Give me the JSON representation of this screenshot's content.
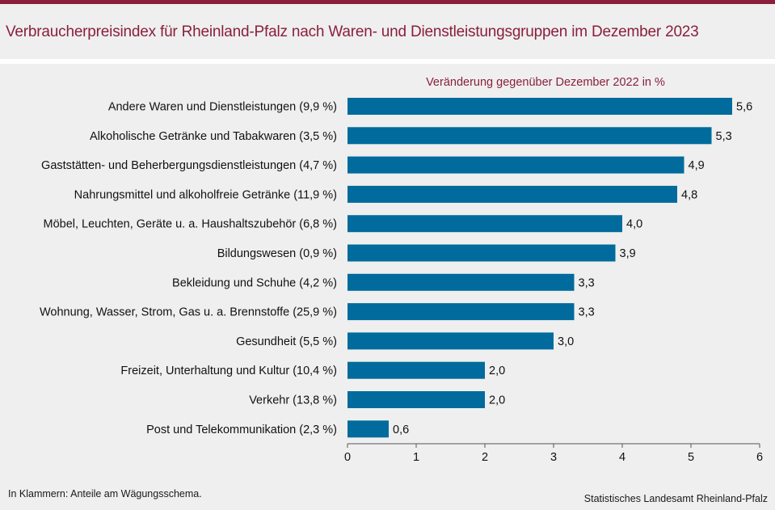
{
  "title": "Verbraucherpreisindex für Rheinland-Pfalz nach Waren- und Dienstleistungsgruppen im Dezember 2023",
  "footnote": "In Klammern: Anteile am Wägungsschema.",
  "source": "Statistisches Landesamt Rheinland-Pfalz",
  "colors": {
    "accent": "#8a1f3d",
    "bar": "#006b9c",
    "background": "#efefef"
  },
  "chart_data": {
    "type": "bar",
    "orientation": "horizontal",
    "subtitle": "Veränderung gegenüber Dezember 2022 in %",
    "categories": [
      "Andere Waren und Dienstleistungen (9,9 %)",
      "Alkoholische Getränke und Tabakwaren (3,5 %)",
      "Gaststätten- und Beherbergungsdienstleistungen (4,7 %)",
      "Nahrungsmittel und alkoholfreie Getränke (11,9 %)",
      "Möbel, Leuchten, Geräte u. a. Haushaltszubehör (6,8 %)",
      "Bildungswesen (0,9 %)",
      "Bekleidung und Schuhe (4,2 %)",
      "Wohnung, Wasser, Strom, Gas u. a. Brennstoffe (25,9 %)",
      "Gesundheit (5,5 %)",
      "Freizeit, Unterhaltung und Kultur (10,4 %)",
      "Verkehr (13,8 %)",
      "Post und Telekommunikation (2,3 %)"
    ],
    "values": [
      5.6,
      5.3,
      4.9,
      4.8,
      4.0,
      3.9,
      3.3,
      3.3,
      3.0,
      2.0,
      2.0,
      0.6
    ],
    "value_labels": [
      "5,6",
      "5,3",
      "4,9",
      "4,8",
      "4,0",
      "3,9",
      "3,3",
      "3,3",
      "3,0",
      "2,0",
      "2,0",
      "0,6"
    ],
    "xlim": [
      0,
      6
    ],
    "xticks": [
      0,
      1,
      2,
      3,
      4,
      5,
      6
    ],
    "xtick_labels": [
      "0",
      "1",
      "2",
      "3",
      "4",
      "5",
      "6"
    ],
    "grid": false
  }
}
